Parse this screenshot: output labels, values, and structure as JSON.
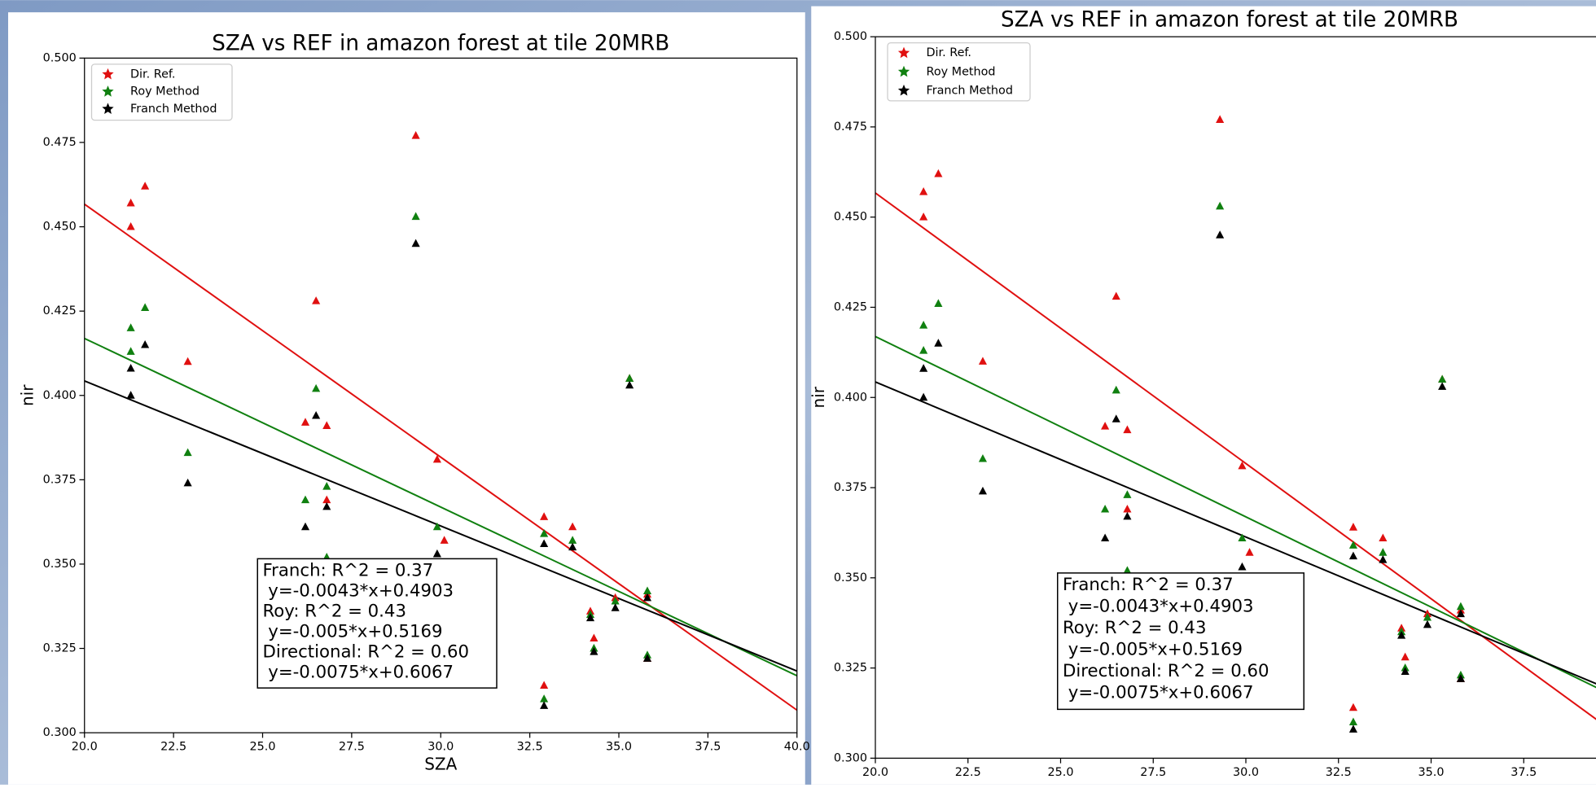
{
  "chart_data": [
    {
      "type": "scatter",
      "title": "SZA vs REF in amazon forest at tile 20MRB",
      "xlabel": "SZA",
      "ylabel": "nir",
      "xlim": [
        20,
        40
      ],
      "ylim": [
        0.3,
        0.5
      ],
      "xticks": [
        {
          "value": 20,
          "label": "20.0"
        },
        {
          "value": 22.5,
          "label": "22.5"
        },
        {
          "value": 25,
          "label": "25.0"
        },
        {
          "value": 27.5,
          "label": "27.5"
        },
        {
          "value": 30,
          "label": "30.0"
        },
        {
          "value": 32.5,
          "label": "32.5"
        },
        {
          "value": 35,
          "label": "35.0"
        },
        {
          "value": 37.5,
          "label": "37.5"
        },
        {
          "value": 40,
          "label": "40.0"
        }
      ],
      "yticks": [
        {
          "value": 0.3,
          "label": "0.300"
        },
        {
          "value": 0.325,
          "label": "0.325"
        },
        {
          "value": 0.35,
          "label": "0.350"
        },
        {
          "value": 0.375,
          "label": "0.375"
        },
        {
          "value": 0.4,
          "label": "0.400"
        },
        {
          "value": 0.425,
          "label": "0.425"
        },
        {
          "value": 0.45,
          "label": "0.450"
        },
        {
          "value": 0.475,
          "label": "0.475"
        },
        {
          "value": 0.5,
          "label": "0.500"
        }
      ],
      "legend": "upper left",
      "series": [
        {
          "name": "Dir. Ref.",
          "color": "#e01010",
          "x": [
            21.3,
            21.3,
            21.7,
            22.9,
            26.5,
            26.2,
            26.8,
            26.8,
            29.3,
            29.9,
            30.1,
            32.9,
            32.9,
            33.7,
            34.2,
            34.3,
            34.9,
            35.3,
            35.8,
            35.8
          ],
          "values": [
            0.457,
            0.45,
            0.462,
            0.41,
            0.428,
            0.392,
            0.391,
            0.369,
            0.477,
            0.381,
            0.357,
            0.364,
            0.314,
            0.361,
            0.336,
            0.328,
            0.34,
            0.405,
            0.341,
            0.322
          ],
          "fit_x": [
            20,
            40
          ],
          "fit_y": [
            0.4567,
            0.3067
          ]
        },
        {
          "name": "Roy Method",
          "color": "#108010",
          "x": [
            21.3,
            21.3,
            21.7,
            22.9,
            26.5,
            26.2,
            26.8,
            26.8,
            29.3,
            29.9,
            32.9,
            32.9,
            33.7,
            34.2,
            34.3,
            34.9,
            35.3,
            35.8,
            35.8
          ],
          "values": [
            0.42,
            0.413,
            0.426,
            0.383,
            0.402,
            0.369,
            0.373,
            0.352,
            0.453,
            0.361,
            0.359,
            0.31,
            0.357,
            0.335,
            0.325,
            0.339,
            0.405,
            0.342,
            0.323
          ],
          "fit_x": [
            20,
            40
          ],
          "fit_y": [
            0.4169,
            0.3169
          ]
        },
        {
          "name": "Franch Method",
          "color": "#000000",
          "x": [
            21.3,
            21.3,
            21.7,
            22.9,
            26.5,
            26.2,
            26.8,
            29.3,
            29.9,
            32.9,
            32.9,
            33.7,
            34.2,
            34.3,
            34.9,
            35.3,
            35.8,
            35.8
          ],
          "values": [
            0.408,
            0.4,
            0.415,
            0.374,
            0.394,
            0.361,
            0.367,
            0.445,
            0.353,
            0.356,
            0.308,
            0.355,
            0.334,
            0.324,
            0.337,
            0.403,
            0.34,
            0.322
          ],
          "fit_x": [
            20,
            40
          ],
          "fit_y": [
            0.4043,
            0.3183
          ]
        }
      ],
      "annotation": [
        "Franch: R^2 = 0.37",
        " y=-0.0043*x+0.4903",
        "Roy: R^2 = 0.43",
        " y=-0.005*x+0.5169",
        "Directional: R^2 = 0.60",
        " y=-0.0075*x+0.6067"
      ]
    },
    {
      "type": "scatter",
      "title": "SZA vs REF in amazon forest at tile 20MRB",
      "ylabel": "nir",
      "xlim": [
        20,
        40
      ],
      "ylim": [
        0.3,
        0.5
      ],
      "xticks": [
        {
          "value": 20,
          "label": "20.0"
        },
        {
          "value": 22.5,
          "label": "22.5"
        },
        {
          "value": 25,
          "label": "25.0"
        },
        {
          "value": 27.5,
          "label": "27.5"
        },
        {
          "value": 30,
          "label": "30.0"
        },
        {
          "value": 32.5,
          "label": "32.5"
        },
        {
          "value": 35,
          "label": "35.0"
        },
        {
          "value": 37.5,
          "label": "37.5"
        }
      ],
      "yticks": [
        {
          "value": 0.3,
          "label": "0.300"
        },
        {
          "value": 0.325,
          "label": "0.325"
        },
        {
          "value": 0.35,
          "label": "0.350"
        },
        {
          "value": 0.375,
          "label": "0.375"
        },
        {
          "value": 0.4,
          "label": "0.400"
        },
        {
          "value": 0.425,
          "label": "0.425"
        },
        {
          "value": 0.45,
          "label": "0.450"
        },
        {
          "value": 0.475,
          "label": "0.475"
        },
        {
          "value": 0.5,
          "label": "0.500"
        }
      ],
      "legend": "upper left",
      "series": [
        {
          "name": "Dir. Ref.",
          "color": "#e01010",
          "x": [
            21.3,
            21.3,
            21.7,
            22.9,
            26.5,
            26.2,
            26.8,
            26.8,
            29.3,
            29.9,
            30.1,
            32.9,
            32.9,
            33.7,
            34.2,
            34.3,
            34.9,
            35.3,
            35.8,
            35.8
          ],
          "values": [
            0.457,
            0.45,
            0.462,
            0.41,
            0.428,
            0.392,
            0.391,
            0.369,
            0.477,
            0.381,
            0.357,
            0.364,
            0.314,
            0.361,
            0.336,
            0.328,
            0.34,
            0.405,
            0.341,
            0.322
          ],
          "fit_x": [
            20,
            40
          ],
          "fit_y": [
            0.4567,
            0.3067
          ]
        },
        {
          "name": "Roy Method",
          "color": "#108010",
          "x": [
            21.3,
            21.3,
            21.7,
            22.9,
            26.5,
            26.2,
            26.8,
            26.8,
            29.3,
            29.9,
            32.9,
            32.9,
            33.7,
            34.2,
            34.3,
            34.9,
            35.3,
            35.8,
            35.8
          ],
          "values": [
            0.42,
            0.413,
            0.426,
            0.383,
            0.402,
            0.369,
            0.373,
            0.352,
            0.453,
            0.361,
            0.359,
            0.31,
            0.357,
            0.335,
            0.325,
            0.339,
            0.405,
            0.342,
            0.323
          ],
          "fit_x": [
            20,
            40
          ],
          "fit_y": [
            0.4169,
            0.3169
          ]
        },
        {
          "name": "Franch Method",
          "color": "#000000",
          "x": [
            21.3,
            21.3,
            21.7,
            22.9,
            26.5,
            26.2,
            26.8,
            29.3,
            29.9,
            32.9,
            32.9,
            33.7,
            34.2,
            34.3,
            34.9,
            35.3,
            35.8,
            35.8
          ],
          "values": [
            0.408,
            0.4,
            0.415,
            0.374,
            0.394,
            0.361,
            0.367,
            0.445,
            0.353,
            0.356,
            0.308,
            0.355,
            0.334,
            0.324,
            0.337,
            0.403,
            0.34,
            0.322
          ],
          "fit_x": [
            20,
            40
          ],
          "fit_y": [
            0.4043,
            0.3183
          ]
        }
      ],
      "annotation": [
        "Franch: R^2 = 0.37",
        " y=-0.0043*x+0.4903",
        "Roy: R^2 = 0.43",
        " y=-0.005*x+0.5169",
        "Directional: R^2 = 0.60",
        " y=-0.0075*x+0.6067"
      ]
    }
  ]
}
